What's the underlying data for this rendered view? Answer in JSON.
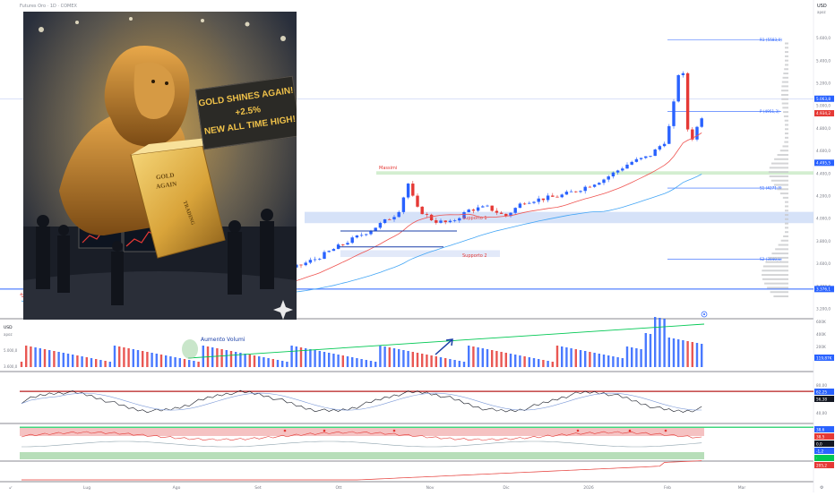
{
  "header": {
    "instrument_title": "Futures Oro · 1D · COMEX",
    "currency": "USD",
    "currency_sub": "apoz"
  },
  "artwork": {
    "banner_lines": [
      "GOLD SHINES AGAIN!",
      "+2.5%",
      "NEW ALL TIME HIGH!"
    ],
    "bar_text_1": "GOLD",
    "bar_text_2": "AGAIN",
    "bar_text_3": "TRADING"
  },
  "price_axis": {
    "ticks": [
      "5.000,0",
      "4.800,0",
      "4.600,0",
      "4.400,0",
      "4.200,0",
      "4.000,0",
      "3.800,0",
      "3.600,0",
      "3.400,0",
      "3.200,0"
    ],
    "ticks_top": [
      "5.600,0",
      "5.400,0",
      "5.200,0"
    ],
    "badges": [
      {
        "label": "5.063,8",
        "color": "#2962ff"
      },
      {
        "label": "4.934,2",
        "color": "#e53935"
      },
      {
        "label": "4.495,5",
        "color": "#2962ff"
      },
      {
        "label": "3.376,1",
        "color": "#2962ff"
      }
    ]
  },
  "annotations": {
    "pivot_r1": "R1 (5583,0)",
    "pivot_p": "P (4951,3)",
    "pivot_s1": "S1 (4271,3)",
    "pivot_s2": "S2 (3640,1)",
    "massimi": "Massimi",
    "supporto1": "Supporto 1",
    "supporto2": "Supporto 2",
    "aumento_volumi": "Aumento Volumi"
  },
  "volume_pane": {
    "currency": "USD",
    "currency_sub": "apoz",
    "ticks": [
      "600K",
      "400K",
      "200K"
    ],
    "left_labels": [
      "5.000,0",
      "3.600,0"
    ],
    "badge": "119,87K"
  },
  "rsi_pane": {
    "ticks": [
      "80,00",
      "40,00"
    ],
    "badges": [
      {
        "label": "62,25",
        "color": "#2962ff"
      },
      {
        "label": "56,38",
        "color": "#131722"
      }
    ]
  },
  "osc_pane": {
    "badges": [
      {
        "label": "38,6",
        "color": "#2962ff"
      },
      {
        "label": "38,5",
        "color": "#e53935"
      },
      {
        "label": "0,0",
        "color": "#131722"
      },
      {
        "label": "-1,2",
        "color": "#2962ff"
      },
      {
        "label": "·",
        "color": "#00c853"
      }
    ]
  },
  "bottom_pane": {
    "badge": "205,2",
    "badge_color": "#e53935"
  },
  "time_axis": [
    "Lug",
    "Ago",
    "Set",
    "Ott",
    "Nov",
    "Dic",
    "2026",
    "Feb",
    "Mar"
  ],
  "colors": {
    "up": "#2962ff",
    "down": "#e53935",
    "ma_fast": "#ef5350",
    "ma_slow": "#42a5f5",
    "trend_green": "#00c853",
    "support_zone": "#c5d5f5",
    "max_zone": "#c8eac4"
  },
  "chart_data": {
    "type": "candlestick",
    "title": "",
    "x": [
      "Lug",
      "Ago",
      "Set",
      "Ott",
      "Nov",
      "Dic",
      "2026",
      "Feb"
    ],
    "series": [
      {
        "name": "",
        "values": [
          3350,
          3400,
          3620,
          3920,
          4050,
          4320,
          4480,
          4950
        ]
      }
    ],
    "ylim": [
      3200,
      5700
    ],
    "price_levels": {
      "R1": 5583.0,
      "P": 4951.3,
      "S1": 4271.3,
      "S2": 3640.1,
      "massimi": 4400,
      "supporto_1": 4000,
      "supporto_2": 3680
    },
    "grid": false
  }
}
